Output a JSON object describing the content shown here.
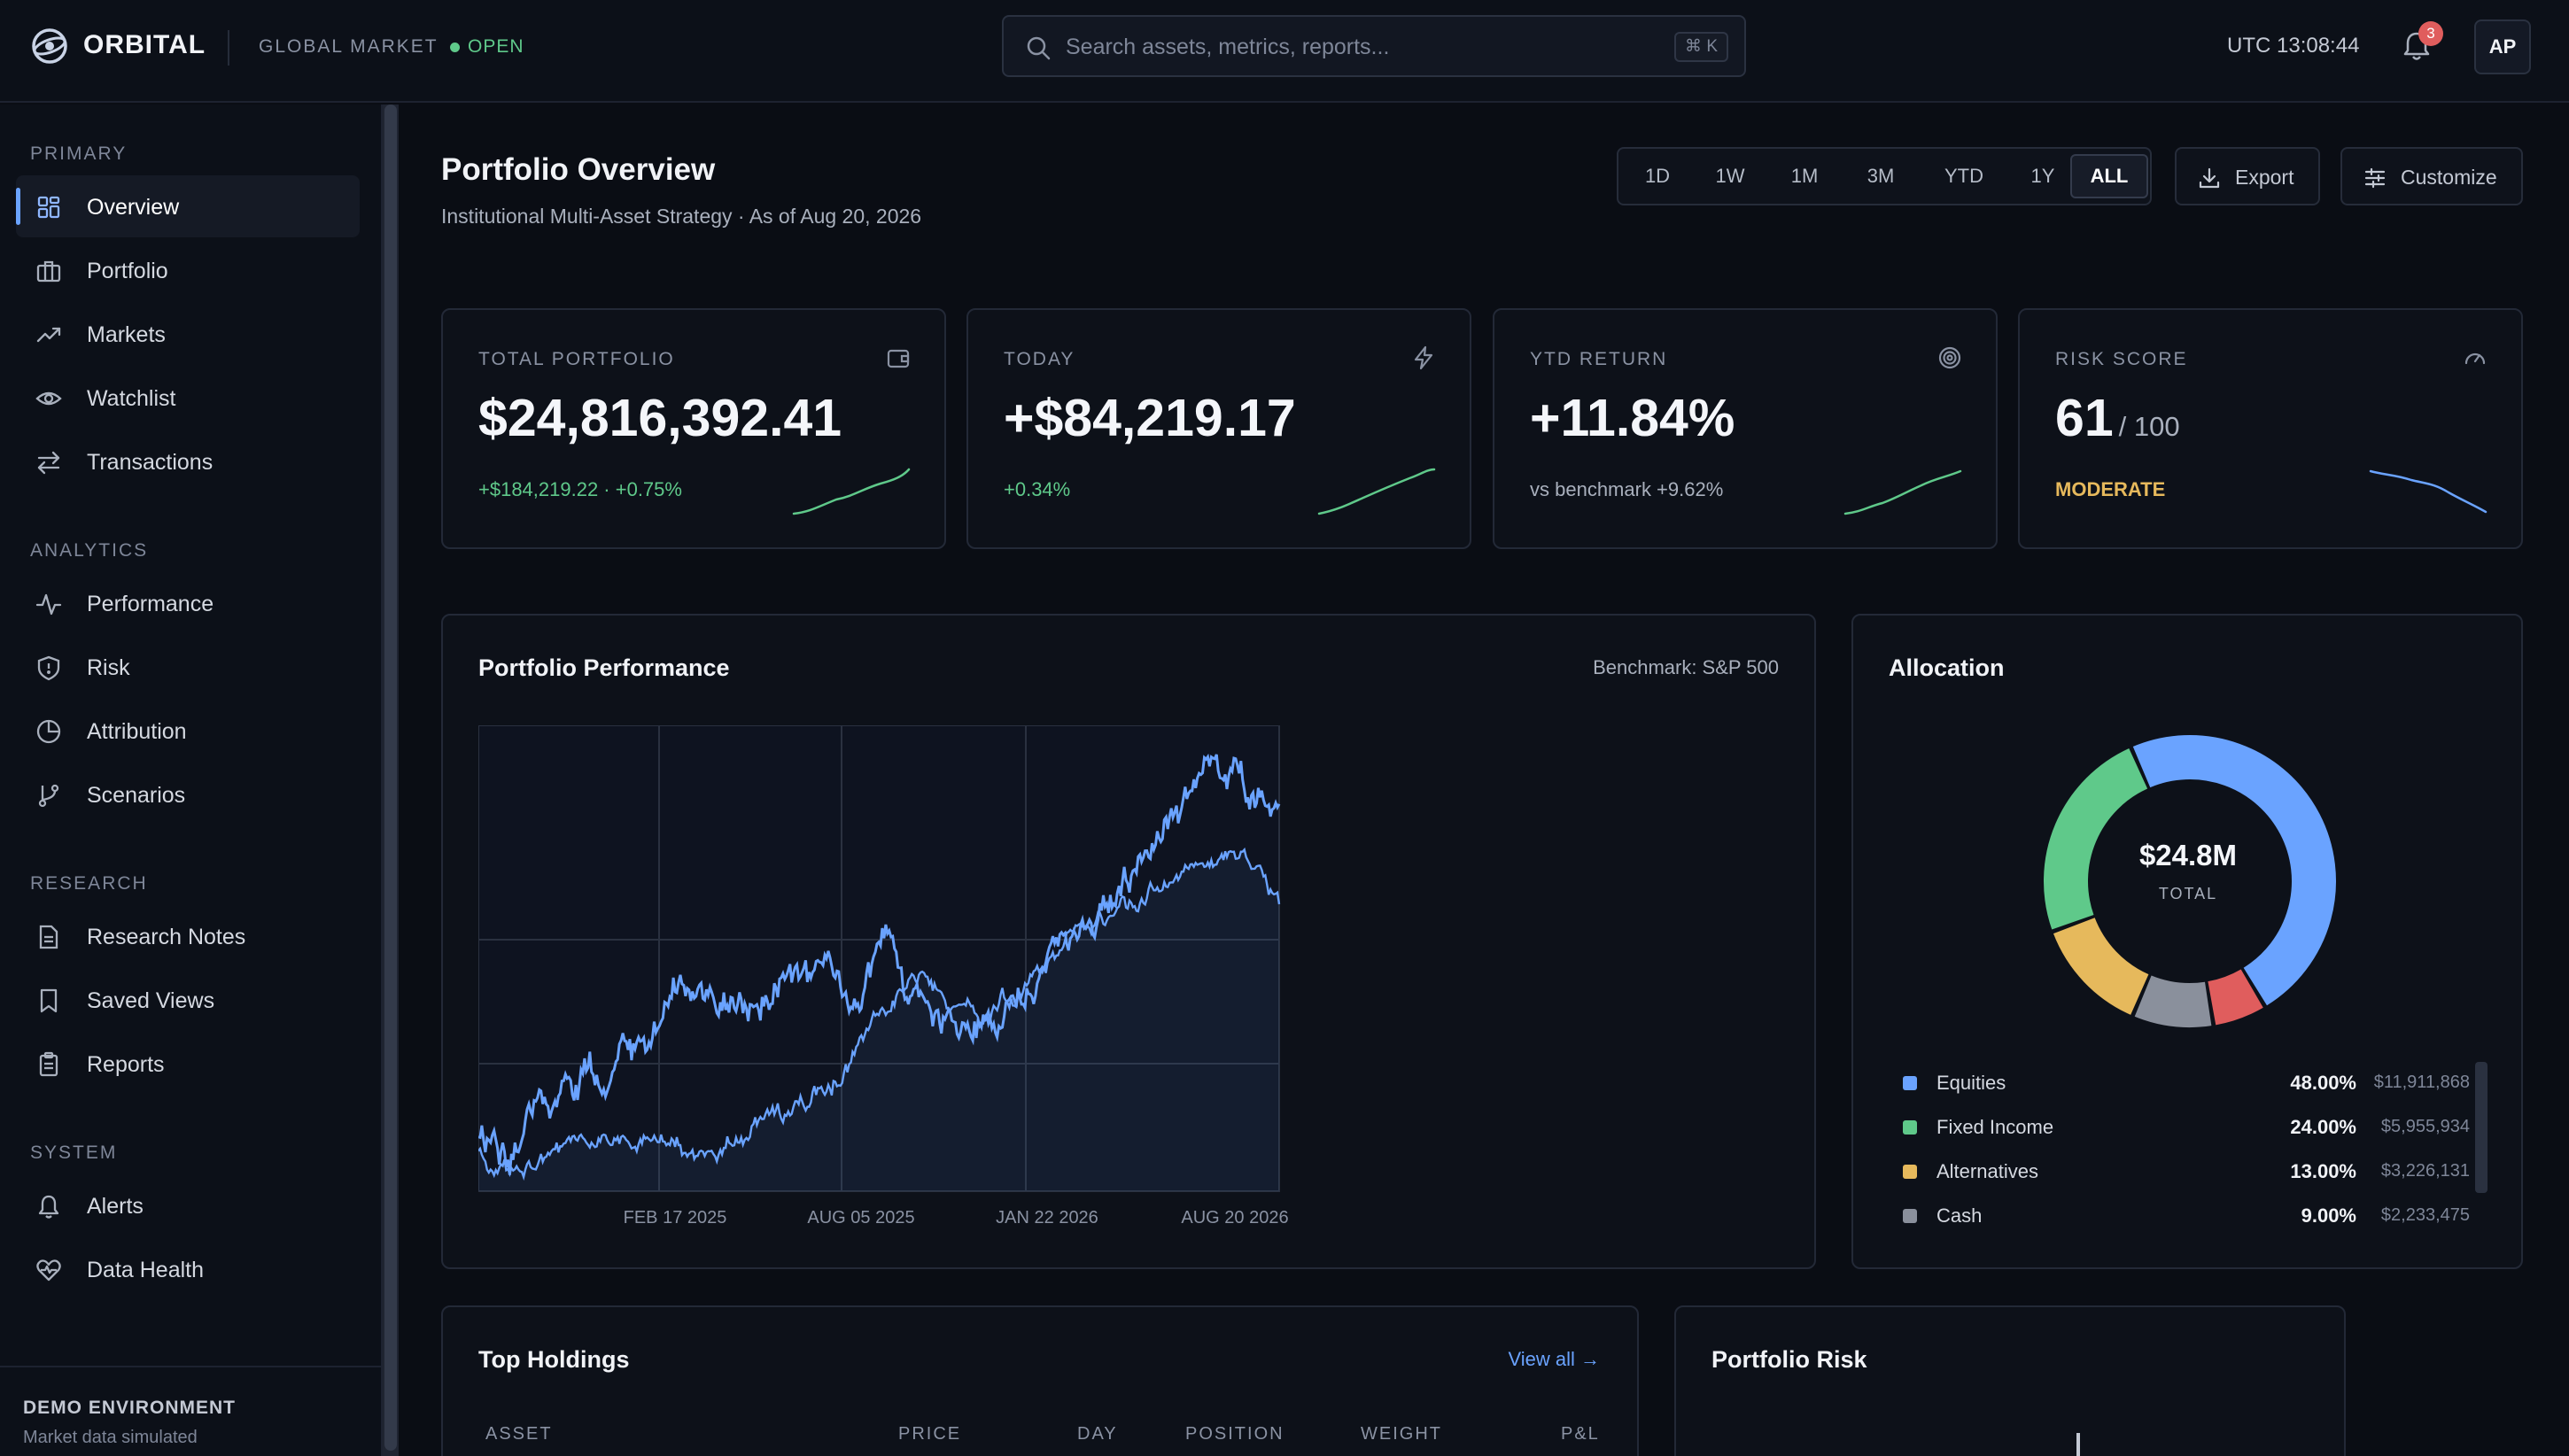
{
  "app": {
    "name": "ORBITAL",
    "market_label": "GLOBAL MARKET",
    "market_status": "OPEN"
  },
  "search": {
    "placeholder": "Search assets, metrics, reports...",
    "shortcut": "⌘ K"
  },
  "topbar": {
    "clock": "UTC 13:08:44",
    "notifications": "3",
    "avatar": "AP"
  },
  "sidebar": {
    "sections": [
      {
        "title": "PRIMARY",
        "items": [
          {
            "label": "Overview",
            "icon": "grid-icon",
            "active": true
          },
          {
            "label": "Portfolio",
            "icon": "briefcase-icon"
          },
          {
            "label": "Markets",
            "icon": "trend-up-icon"
          },
          {
            "label": "Watchlist",
            "icon": "eye-icon"
          },
          {
            "label": "Transactions",
            "icon": "swap-icon"
          }
        ]
      },
      {
        "title": "ANALYTICS",
        "items": [
          {
            "label": "Performance",
            "icon": "pulse-icon"
          },
          {
            "label": "Risk",
            "icon": "shield-icon"
          },
          {
            "label": "Attribution",
            "icon": "pie-icon"
          },
          {
            "label": "Scenarios",
            "icon": "branch-icon"
          }
        ]
      },
      {
        "title": "RESEARCH",
        "items": [
          {
            "label": "Research Notes",
            "icon": "document-icon"
          },
          {
            "label": "Saved Views",
            "icon": "bookmark-icon"
          },
          {
            "label": "Reports",
            "icon": "clipboard-icon"
          }
        ]
      },
      {
        "title": "SYSTEM",
        "items": [
          {
            "label": "Alerts",
            "icon": "bell-icon"
          },
          {
            "label": "Data Health",
            "icon": "heart-pulse-icon"
          }
        ]
      }
    ],
    "footer": {
      "title": "DEMO ENVIRONMENT",
      "subtitle": "Market data simulated"
    }
  },
  "header": {
    "title": "Portfolio Overview",
    "subtitle": "Institutional Multi-Asset Strategy · As of Aug 20, 2026",
    "ranges": [
      "1D",
      "1W",
      "1M",
      "3M",
      "YTD",
      "1Y",
      "ALL"
    ],
    "active_range": "ALL",
    "export_label": "Export",
    "customize_label": "Customize"
  },
  "kpis": {
    "total": {
      "label": "TOTAL PORTFOLIO",
      "value": "$24,816,392.41",
      "sub": "+$184,219.22 · +0.75%",
      "icon": "wallet-icon"
    },
    "today": {
      "label": "TODAY",
      "value": "+$84,219.17",
      "sub": "+0.34%",
      "icon": "bolt-icon"
    },
    "ytd": {
      "label": "YTD RETURN",
      "value": "+11.84%",
      "sub": "vs benchmark +9.62%",
      "icon": "target-icon"
    },
    "risk": {
      "label": "RISK SCORE",
      "value": "61",
      "suffix": "/ 100",
      "sub": "MODERATE",
      "icon": "gauge-icon"
    }
  },
  "colors": {
    "accent": "#6aa3ff",
    "positive": "#5fc98a",
    "warning": "#e6b95c",
    "danger": "#e05d5d"
  },
  "performance": {
    "title": "Portfolio Performance",
    "benchmark": "Benchmark: S&P 500",
    "x_labels": [
      "FEB 17 2025",
      "AUG 05 2025",
      "JAN 22 2026",
      "AUG 20 2026"
    ]
  },
  "allocation": {
    "title": "Allocation",
    "center_value": "$24.8M",
    "center_label": "TOTAL",
    "items": [
      {
        "name": "Equities",
        "pct": "48.00%",
        "amount": "$11,911,868",
        "color": "#6aa3ff",
        "share": 48
      },
      {
        "name": "Fixed Income",
        "pct": "24.00%",
        "amount": "$5,955,934",
        "color": "#5fc98a",
        "share": 24
      },
      {
        "name": "Alternatives",
        "pct": "13.00%",
        "amount": "$3,226,131",
        "color": "#e6b95c",
        "share": 13
      },
      {
        "name": "Cash",
        "pct": "9.00%",
        "amount": "$2,233,475",
        "color": "#8a909c",
        "share": 9
      }
    ],
    "hidden_share": {
      "color": "#e05d5d",
      "share": 6
    }
  },
  "holdings": {
    "title": "Top Holdings",
    "view_all": "View all →",
    "columns": [
      "ASSET",
      "PRICE",
      "DAY",
      "POSITION",
      "WEIGHT",
      "P&L"
    ]
  },
  "risk_panel": {
    "title": "Portfolio Risk"
  }
}
